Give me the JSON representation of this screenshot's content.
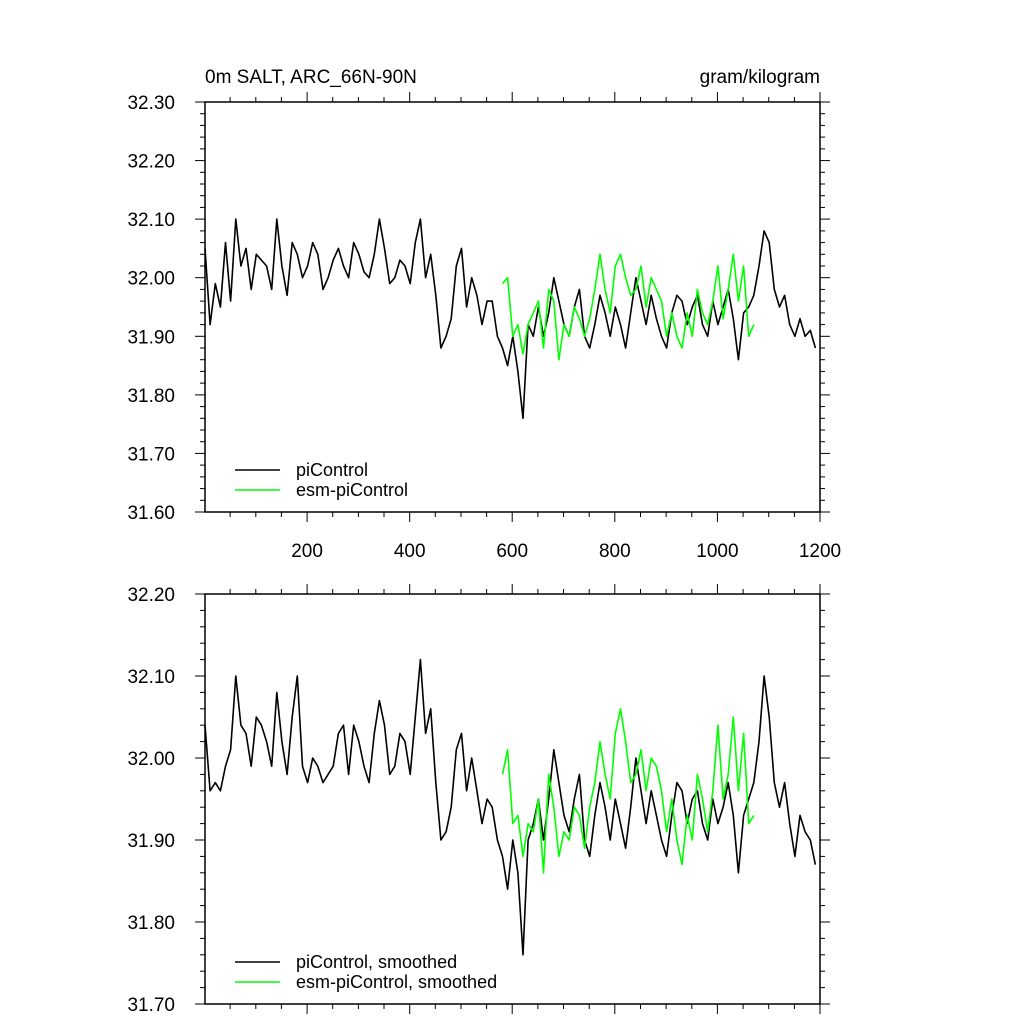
{
  "chart_data": [
    {
      "type": "line",
      "title_left": "0m SALT, ARC_66N-90N",
      "title_right": "gram/kilogram",
      "xlim": [
        1,
        1200
      ],
      "ylim": [
        31.6,
        32.3
      ],
      "xticks": [
        200,
        400,
        600,
        800,
        1000,
        1200
      ],
      "xtick_labels": [
        "200",
        "400",
        "600",
        "800",
        "1000",
        "1200"
      ],
      "yticks": [
        31.6,
        31.7,
        31.8,
        31.9,
        32.0,
        32.1,
        32.2,
        32.3
      ],
      "ytick_labels": [
        "31.60",
        "31.70",
        "31.80",
        "31.90",
        "32.00",
        "32.10",
        "32.20",
        "32.30"
      ],
      "legend_position": "bottom-left",
      "series": [
        {
          "name": "piControl",
          "color": "#000000",
          "x_start": 1,
          "x_step": 10,
          "values": [
            32.05,
            31.92,
            31.99,
            31.95,
            32.06,
            31.96,
            32.1,
            32.02,
            32.05,
            31.98,
            32.04,
            32.03,
            32.02,
            31.98,
            32.1,
            32.02,
            31.97,
            32.06,
            32.04,
            32.0,
            32.02,
            32.06,
            32.04,
            31.98,
            32.0,
            32.03,
            32.05,
            32.02,
            32.0,
            32.06,
            32.04,
            32.01,
            32.0,
            32.04,
            32.1,
            32.05,
            31.99,
            32.0,
            32.03,
            32.02,
            31.99,
            32.06,
            32.1,
            32.0,
            32.04,
            31.97,
            31.88,
            31.9,
            31.93,
            32.02,
            32.05,
            31.95,
            32.0,
            31.97,
            31.92,
            31.96,
            31.96,
            31.9,
            31.88,
            31.85,
            31.9,
            31.84,
            31.76,
            31.92,
            31.9,
            31.95,
            31.9,
            31.94,
            32.0,
            31.96,
            31.92,
            31.9,
            31.95,
            31.98,
            31.9,
            31.88,
            31.92,
            31.97,
            31.94,
            31.9,
            31.95,
            31.92,
            31.88,
            31.94,
            32.0,
            31.96,
            31.92,
            31.97,
            31.93,
            31.9,
            31.88,
            31.94,
            31.97,
            31.96,
            31.92,
            31.95,
            31.97,
            31.92,
            31.9,
            31.96,
            31.92,
            31.95,
            31.98,
            31.93,
            31.86,
            31.94,
            31.95,
            31.97,
            32.02,
            32.08,
            32.06,
            31.98,
            31.95,
            31.97,
            31.92,
            31.9,
            31.93,
            31.9,
            31.91,
            31.88
          ]
        },
        {
          "name": "esm-piControl",
          "color": "#00ff00",
          "x_start": 581,
          "x_step": 10,
          "values": [
            31.99,
            32.0,
            31.9,
            31.92,
            31.87,
            31.92,
            31.94,
            31.96,
            31.88,
            31.98,
            31.96,
            31.86,
            31.92,
            31.9,
            31.95,
            31.93,
            31.9,
            31.93,
            31.98,
            32.04,
            31.98,
            31.94,
            32.02,
            32.04,
            32.0,
            31.97,
            31.98,
            32.02,
            31.95,
            32.0,
            31.98,
            31.96,
            31.9,
            31.94,
            31.9,
            31.88,
            31.94,
            31.9,
            31.98,
            31.94,
            31.92,
            31.96,
            32.02,
            31.93,
            31.98,
            32.04,
            31.96,
            32.02,
            31.9,
            31.92
          ]
        }
      ]
    },
    {
      "type": "line",
      "xlim": [
        1,
        1200
      ],
      "ylim": [
        31.7,
        32.2
      ],
      "xticks": [
        200,
        400,
        600,
        800,
        1000,
        1200
      ],
      "yticks": [
        31.7,
        31.8,
        31.9,
        32.0,
        32.1,
        32.2
      ],
      "ytick_labels": [
        "31.70",
        "31.80",
        "31.90",
        "32.00",
        "32.10",
        "32.20"
      ],
      "legend_position": "bottom-left",
      "series": [
        {
          "name": "piControl, smoothed",
          "color": "#000000",
          "x_start": 1,
          "x_step": 10,
          "values": [
            32.04,
            31.96,
            31.97,
            31.96,
            31.99,
            32.01,
            32.1,
            32.04,
            32.03,
            31.99,
            32.05,
            32.04,
            32.02,
            31.99,
            32.08,
            32.02,
            31.98,
            32.05,
            32.1,
            31.99,
            31.97,
            32.0,
            31.99,
            31.97,
            31.98,
            31.99,
            32.03,
            32.04,
            31.98,
            32.04,
            32.02,
            31.99,
            31.97,
            32.03,
            32.07,
            32.04,
            31.98,
            31.99,
            32.03,
            32.02,
            31.98,
            32.05,
            32.12,
            32.03,
            32.06,
            31.97,
            31.9,
            31.91,
            31.94,
            32.01,
            32.03,
            31.96,
            32.0,
            31.96,
            31.92,
            31.95,
            31.94,
            31.9,
            31.88,
            31.84,
            31.9,
            31.86,
            31.76,
            31.9,
            31.92,
            31.95,
            31.9,
            31.95,
            32.01,
            31.97,
            31.93,
            31.91,
            31.95,
            31.98,
            31.9,
            31.88,
            31.93,
            31.97,
            31.94,
            31.9,
            31.95,
            31.92,
            31.89,
            31.94,
            32.0,
            31.96,
            31.92,
            31.96,
            31.93,
            31.9,
            31.88,
            31.93,
            31.97,
            31.96,
            31.92,
            31.95,
            31.96,
            31.92,
            31.9,
            31.95,
            31.92,
            31.94,
            31.97,
            31.93,
            31.86,
            31.93,
            31.95,
            31.97,
            32.02,
            32.1,
            32.05,
            31.97,
            31.94,
            31.97,
            31.92,
            31.88,
            31.93,
            31.91,
            31.9,
            31.87
          ]
        },
        {
          "name": "esm-piControl, smoothed",
          "color": "#00ff00",
          "x_start": 581,
          "x_step": 10,
          "values": [
            31.98,
            32.01,
            31.92,
            31.93,
            31.88,
            31.92,
            31.91,
            31.95,
            31.86,
            31.98,
            31.94,
            31.88,
            31.91,
            31.9,
            31.94,
            31.93,
            31.89,
            31.94,
            31.97,
            32.02,
            31.98,
            31.95,
            32.03,
            32.06,
            32.02,
            31.97,
            31.98,
            32.01,
            31.96,
            32.0,
            31.99,
            31.96,
            31.91,
            31.95,
            31.9,
            31.87,
            31.93,
            31.9,
            31.98,
            31.95,
            31.91,
            31.96,
            32.04,
            31.95,
            31.98,
            32.05,
            31.96,
            32.03,
            31.92,
            31.93
          ]
        }
      ]
    }
  ]
}
